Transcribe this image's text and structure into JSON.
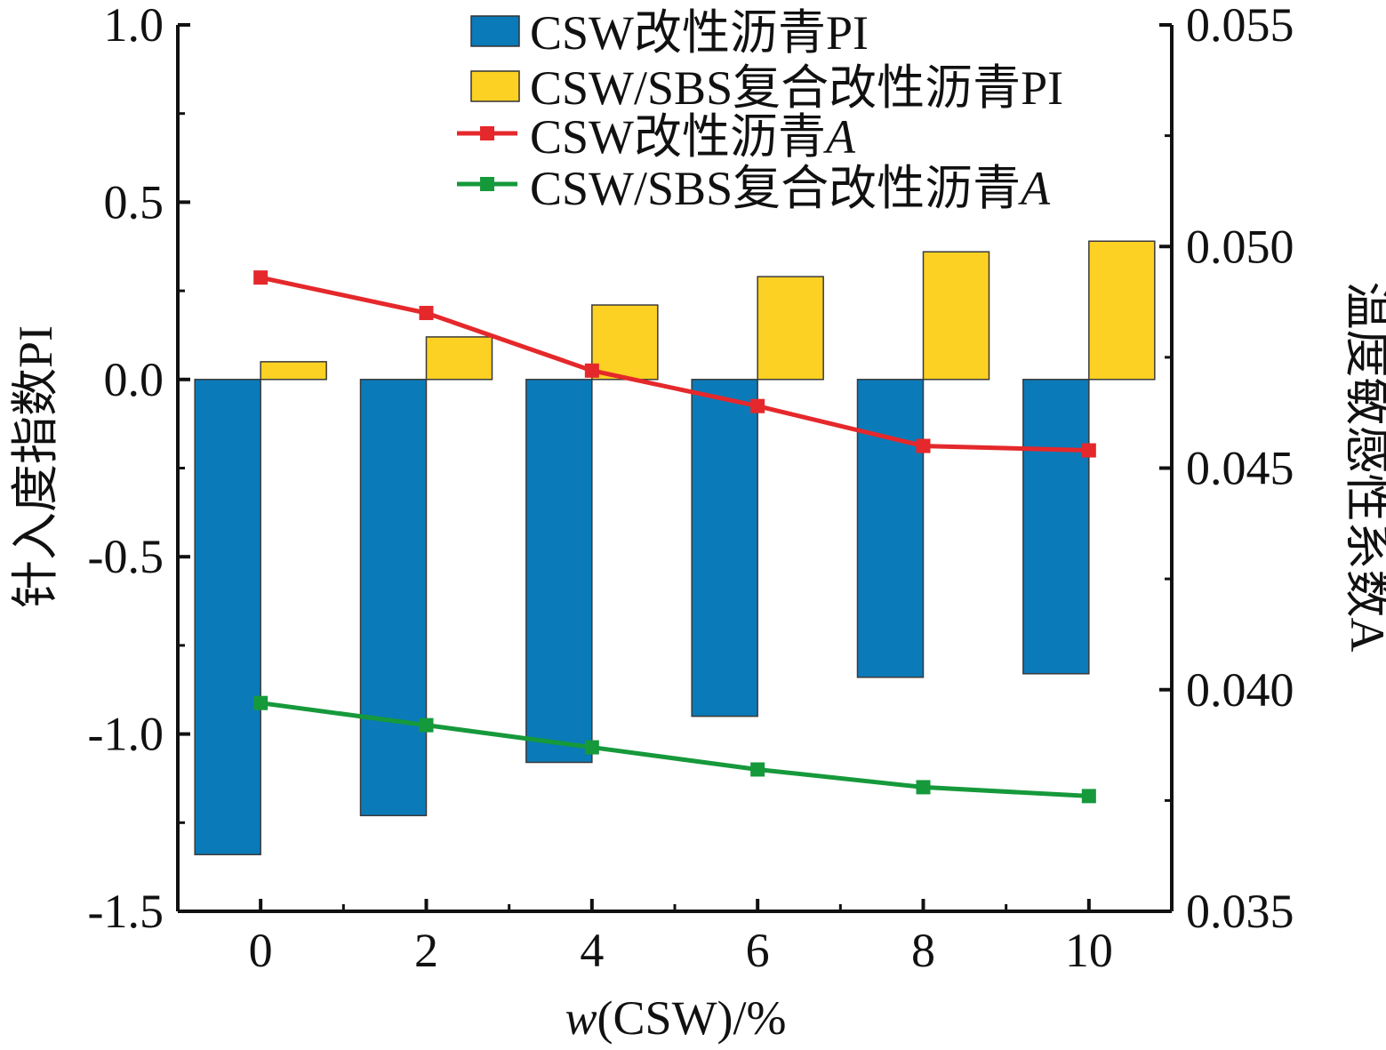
{
  "chart_data": {
    "type": "bar",
    "x": [
      0,
      2,
      4,
      6,
      8,
      10
    ],
    "x_tick_labels": [
      "0",
      "2",
      "4",
      "6",
      "8",
      "10"
    ],
    "xlabel_italic": "w",
    "xlabel_rest": "(CSW)/%",
    "ylabel_left": "针入度指数PI",
    "ylabel_right": "温度敏感性系数A",
    "y_left_range": [
      -1.5,
      1.0
    ],
    "y_left_ticks": [
      "-1.5",
      "-1.0",
      "-0.5",
      "0.0",
      "0.5",
      "1.0"
    ],
    "y_right_range": [
      0.035,
      0.055
    ],
    "y_right_ticks": [
      "0.035",
      "0.040",
      "0.045",
      "0.050",
      "0.055"
    ],
    "grid": false,
    "legend_position": "top-right",
    "series": [
      {
        "name": "CSW改性沥青PI",
        "type": "bar",
        "axis": "left",
        "color": "#0a7ab8",
        "values": [
          -1.34,
          -1.23,
          -1.08,
          -0.95,
          -0.84,
          -0.83
        ]
      },
      {
        "name": "CSW/SBS复合改性沥青PI",
        "type": "bar",
        "axis": "left",
        "color": "#fdd123",
        "values": [
          0.05,
          0.12,
          0.21,
          0.29,
          0.36,
          0.39
        ]
      },
      {
        "name": "CSW改性沥青",
        "name_italic": "A",
        "type": "line",
        "axis": "right",
        "color": "#e5282b",
        "values": [
          0.0493,
          0.0485,
          0.0472,
          0.0464,
          0.0455,
          0.0454
        ]
      },
      {
        "name": "CSW/SBS复合改性沥青",
        "name_italic": "A",
        "type": "line",
        "axis": "right",
        "color": "#16993b",
        "values": [
          0.0397,
          0.0392,
          0.0387,
          0.0382,
          0.0378,
          0.0376
        ]
      }
    ]
  }
}
